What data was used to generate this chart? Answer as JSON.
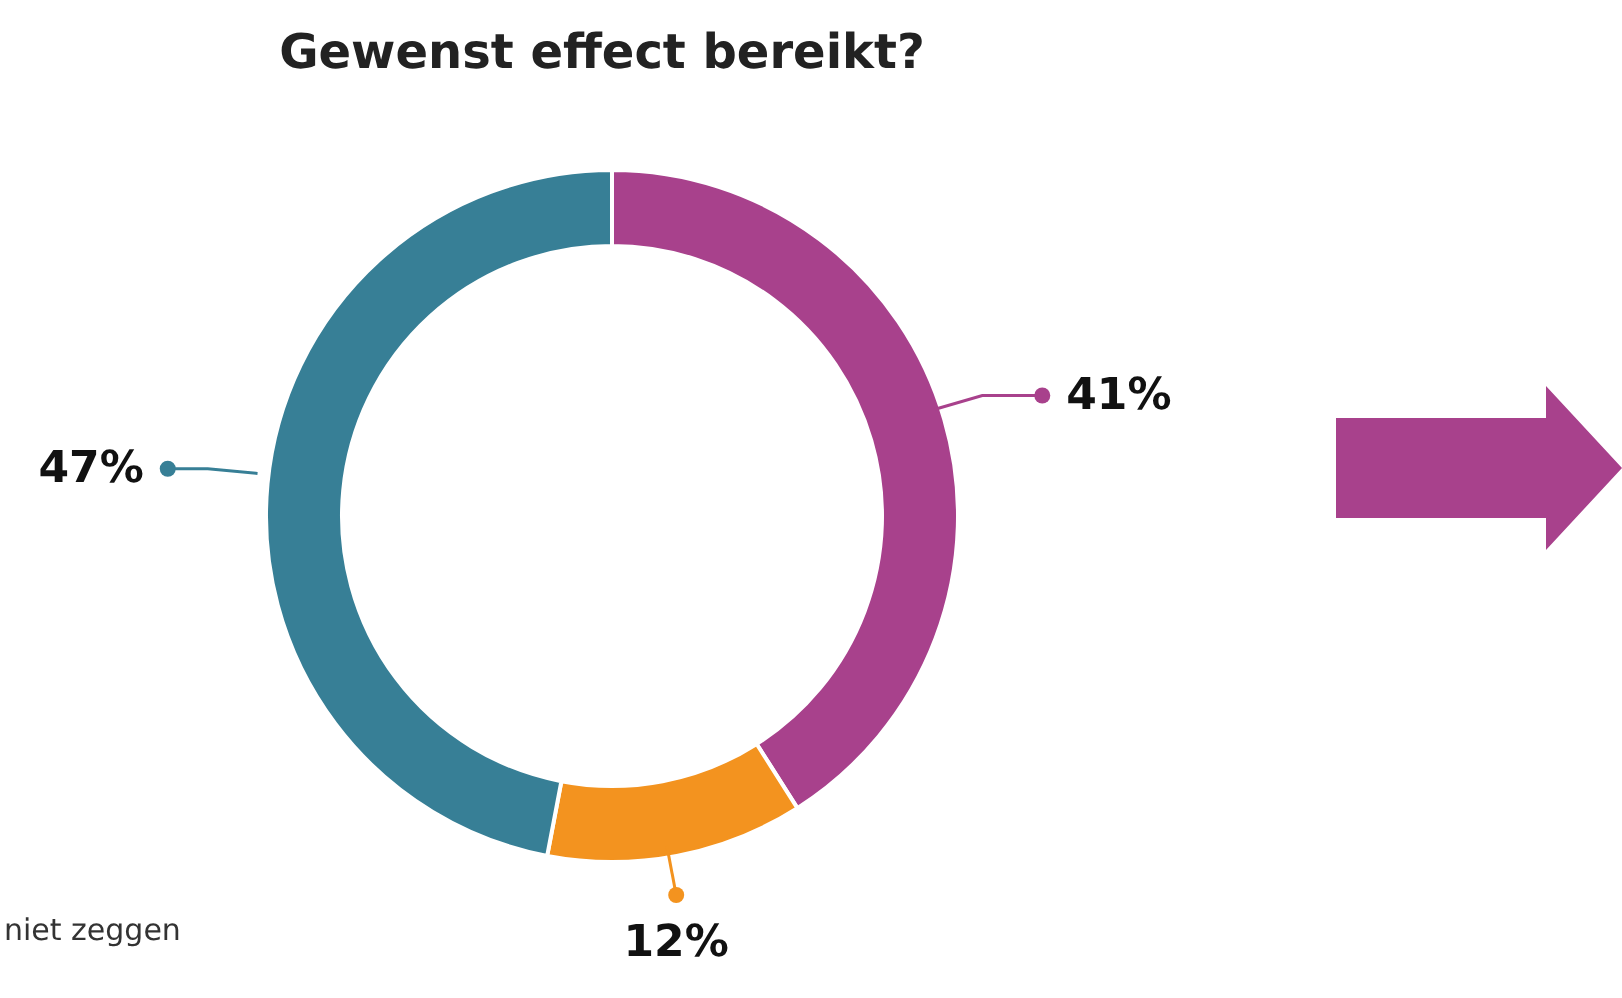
{
  "chart_data": {
    "type": "donut",
    "title": "Gewenst effect bereikt?",
    "categories": [
      null,
      null,
      null
    ],
    "values": [
      41,
      12,
      47
    ],
    "colors": [
      "#a8418c",
      "#f3931f",
      "#377f96"
    ],
    "value_labels": [
      "41%",
      "12%",
      "47%"
    ],
    "annotations": [
      "niet zeggen"
    ]
  }
}
